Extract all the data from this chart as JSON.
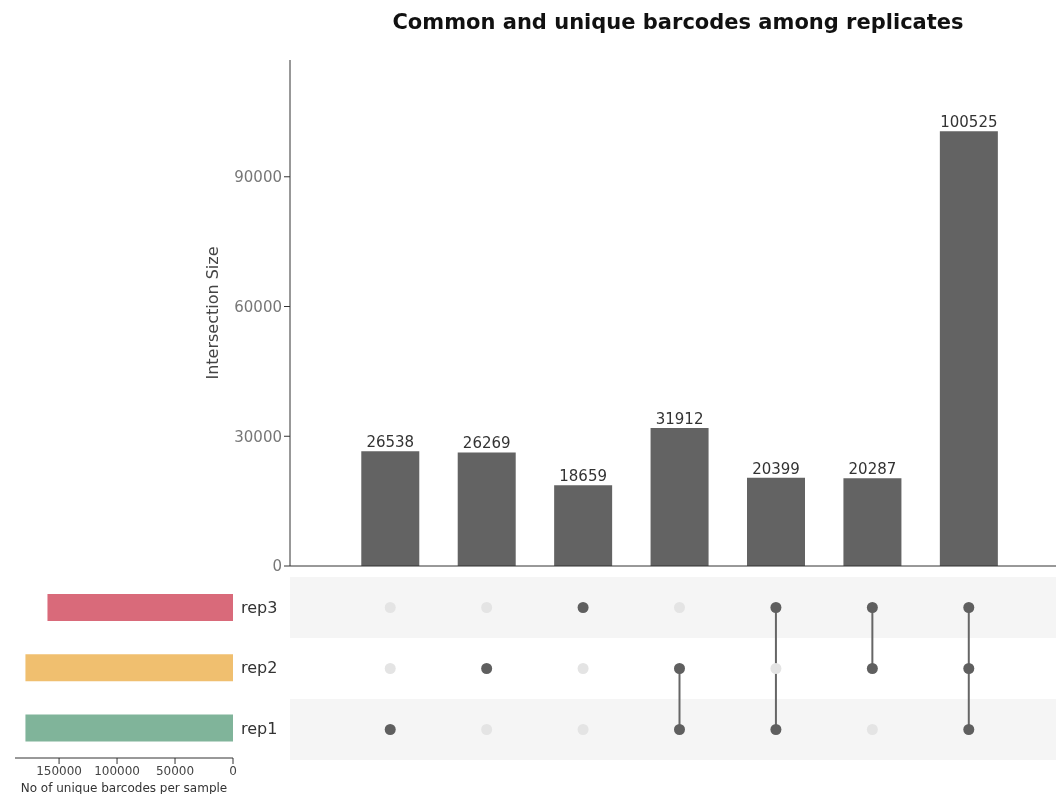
{
  "chart_data": [
    {
      "type": "bar",
      "title": "Common and unique barcodes among replicates",
      "ylabel": "Intersection Size",
      "categories": [
        null,
        null,
        null,
        null,
        null,
        null,
        null
      ],
      "values": [
        26538,
        26269,
        18659,
        31912,
        20399,
        20287,
        100525
      ],
      "color": "#636363",
      "ylim": [
        0,
        117000
      ],
      "yticks": [
        0,
        30000,
        60000,
        90000
      ],
      "data_labels": true,
      "grid": false,
      "legend": false
    },
    {
      "type": "bar",
      "orientation": "horizontal",
      "xlabel": "No of unique barcodes per sample",
      "categories": [
        "rep3",
        "rep2",
        "rep1"
      ],
      "values": [
        160000,
        179000,
        179000
      ],
      "colors": [
        "#d96a7a",
        "#f0bf6f",
        "#80b49a"
      ],
      "xlim": [
        188000,
        0
      ],
      "xticks": [
        150000,
        100000,
        50000,
        0
      ],
      "grid": false,
      "legend": false
    }
  ]
}
